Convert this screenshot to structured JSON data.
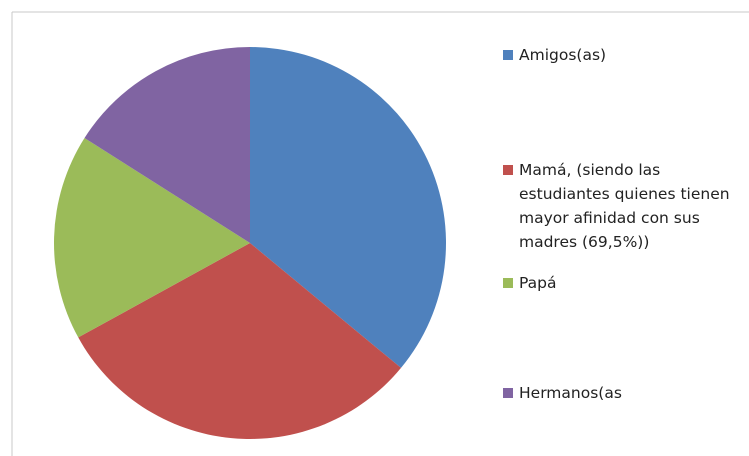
{
  "chart_data": {
    "type": "pie",
    "categories": [
      "Amigos(as)",
      "Mamá, (siendo las estudiantes quienes tienen mayor afinidad con sus madres (69,5%))",
      "Papá",
      "Hermanos(as"
    ],
    "values": [
      36,
      31,
      17,
      16
    ],
    "colors": [
      "#4f81bd",
      "#c0504d",
      "#9bbb59",
      "#8064a2"
    ],
    "legend": "right"
  }
}
